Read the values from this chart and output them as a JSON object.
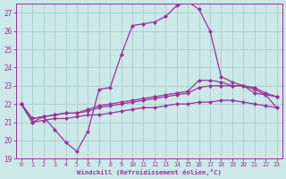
{
  "xlabel": "Windchill (Refroidissement éolien,°C)",
  "background_color": "#cce8e8",
  "line_color": "#993399",
  "grid_color": "#aacccc",
  "xlim": [
    -0.5,
    23.5
  ],
  "ylim": [
    19,
    27.5
  ],
  "xticks": [
    0,
    1,
    2,
    3,
    4,
    5,
    6,
    7,
    8,
    9,
    10,
    11,
    12,
    13,
    14,
    15,
    16,
    17,
    18,
    19,
    20,
    21,
    22,
    23
  ],
  "yticks": [
    19,
    20,
    21,
    22,
    23,
    24,
    25,
    26,
    27
  ],
  "curve1_x": [
    0,
    1,
    2,
    3,
    4,
    5,
    6,
    7,
    8,
    9,
    10,
    11,
    12,
    13,
    14,
    15,
    16,
    17,
    18,
    19,
    20,
    21,
    22,
    23
  ],
  "curve1_y": [
    22.0,
    21.0,
    21.3,
    20.6,
    19.9,
    19.4,
    20.5,
    22.8,
    22.9,
    24.7,
    26.3,
    26.4,
    26.5,
    26.8,
    27.4,
    27.6,
    27.2,
    26.0,
    23.5,
    23.2,
    23.0,
    22.6,
    22.5,
    21.8
  ],
  "curve2_x": [
    0,
    1,
    2,
    3,
    4,
    5,
    6,
    7,
    8,
    9,
    10,
    11,
    12,
    13,
    14,
    15,
    16,
    17,
    18,
    19,
    20,
    21,
    22,
    23
  ],
  "curve2_y": [
    22.0,
    21.2,
    21.3,
    21.4,
    21.5,
    21.5,
    21.7,
    21.9,
    22.0,
    22.1,
    22.2,
    22.3,
    22.4,
    22.5,
    22.6,
    22.7,
    23.3,
    23.3,
    23.2,
    23.0,
    23.0,
    22.8,
    22.5,
    22.4
  ],
  "curve3_x": [
    0,
    1,
    2,
    3,
    4,
    5,
    6,
    7,
    8,
    9,
    10,
    11,
    12,
    13,
    14,
    15,
    16,
    17,
    18,
    19,
    20,
    21,
    22,
    23
  ],
  "curve3_y": [
    22.0,
    21.2,
    21.3,
    21.4,
    21.5,
    21.5,
    21.6,
    21.8,
    21.9,
    22.0,
    22.1,
    22.2,
    22.3,
    22.4,
    22.5,
    22.6,
    22.9,
    23.0,
    23.0,
    23.0,
    23.0,
    22.9,
    22.6,
    22.4
  ],
  "curve4_x": [
    0,
    1,
    2,
    3,
    4,
    5,
    6,
    7,
    8,
    9,
    10,
    11,
    12,
    13,
    14,
    15,
    16,
    17,
    18,
    19,
    20,
    21,
    22,
    23
  ],
  "curve4_y": [
    22.0,
    21.0,
    21.1,
    21.2,
    21.2,
    21.3,
    21.4,
    21.4,
    21.5,
    21.6,
    21.7,
    21.8,
    21.8,
    21.9,
    22.0,
    22.0,
    22.1,
    22.1,
    22.2,
    22.2,
    22.1,
    22.0,
    21.9,
    21.8
  ]
}
